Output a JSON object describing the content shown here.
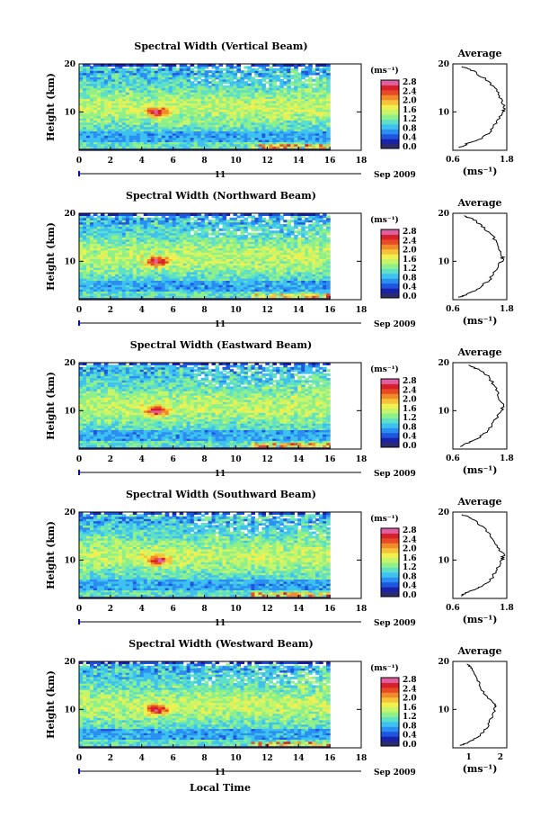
{
  "chart_data": {
    "type": "heatmap",
    "figure_xlabel": "Local Time",
    "date_label": "Sep 2009",
    "day_label": "11",
    "height_ticks": [
      "20",
      "10"
    ],
    "time_ticks": [
      "0",
      "2",
      "4",
      "6",
      "8",
      "10",
      "12",
      "14",
      "16",
      "18"
    ],
    "xlim": [
      0,
      18
    ],
    "ylim": [
      2,
      20
    ],
    "ylabel": "Height (km)",
    "unit_label": "(ms⁻¹)",
    "colorbar": {
      "ticks": [
        "2.8",
        "2.4",
        "2.0",
        "1.6",
        "1.2",
        "0.8",
        "0.4",
        "0.0"
      ],
      "range": [
        0.0,
        3.0
      ],
      "colors": [
        "#2b2b6e",
        "#1a22a8",
        "#1f56e0",
        "#2a8ff0",
        "#3ec1f0",
        "#5ee0c8",
        "#8ff08a",
        "#c6f56a",
        "#f0f050",
        "#f5c23a",
        "#f08a2a",
        "#e84a25",
        "#d6202a",
        "#e05fa0"
      ]
    },
    "panels": [
      {
        "title": "Spectral Width (Vertical Beam)",
        "average": {
          "title": "Average",
          "xlim": [
            0.6,
            1.8
          ],
          "xticks": [
            "0.6",
            "1.8"
          ],
          "xlabel": "(ms⁻¹)",
          "profile": [
            [
              0.75,
              2.5
            ],
            [
              0.95,
              3.5
            ],
            [
              1.25,
              4.5
            ],
            [
              1.45,
              6
            ],
            [
              1.58,
              8
            ],
            [
              1.7,
              10
            ],
            [
              1.75,
              11
            ],
            [
              1.66,
              13
            ],
            [
              1.55,
              15
            ],
            [
              1.3,
              17
            ],
            [
              1.05,
              18.5
            ],
            [
              0.8,
              19.5
            ]
          ]
        }
      },
      {
        "title": "Spectral Width (Northward Beam)",
        "average": {
          "title": "Average",
          "xlim": [
            0.6,
            1.8
          ],
          "xticks": [
            "0.6",
            "1.8"
          ],
          "xlabel": "(ms⁻¹)",
          "profile": [
            [
              0.75,
              2.5
            ],
            [
              1.0,
              3.5
            ],
            [
              1.2,
              4.5
            ],
            [
              1.4,
              6
            ],
            [
              1.55,
              8
            ],
            [
              1.68,
              10
            ],
            [
              1.72,
              11
            ],
            [
              1.6,
              13
            ],
            [
              1.5,
              15
            ],
            [
              1.3,
              17
            ],
            [
              1.1,
              18.5
            ],
            [
              0.85,
              19.5
            ]
          ]
        }
      },
      {
        "title": "Spectral Width (Eastward Beam)",
        "average": {
          "title": "Average",
          "xlim": [
            0.6,
            1.8
          ],
          "xticks": [
            "0.6",
            "1.8"
          ],
          "xlabel": "(ms⁻¹)",
          "profile": [
            [
              0.75,
              2.5
            ],
            [
              1.0,
              3.5
            ],
            [
              1.2,
              4.5
            ],
            [
              1.4,
              6
            ],
            [
              1.55,
              8
            ],
            [
              1.68,
              10
            ],
            [
              1.72,
              11
            ],
            [
              1.62,
              13
            ],
            [
              1.55,
              15
            ],
            [
              1.4,
              17
            ],
            [
              1.2,
              18.5
            ],
            [
              0.95,
              19.5
            ]
          ]
        }
      },
      {
        "title": "Spectral Width (Southward Beam)",
        "average": {
          "title": "Average",
          "xlim": [
            0.6,
            1.8
          ],
          "xticks": [
            "0.6",
            "1.8"
          ],
          "xlabel": "(ms⁻¹)",
          "profile": [
            [
              0.75,
              2.5
            ],
            [
              1.0,
              3.5
            ],
            [
              1.25,
              4.5
            ],
            [
              1.45,
              6
            ],
            [
              1.58,
              8
            ],
            [
              1.7,
              10
            ],
            [
              1.72,
              11
            ],
            [
              1.6,
              13
            ],
            [
              1.45,
              15
            ],
            [
              1.25,
              17
            ],
            [
              1.05,
              18.5
            ],
            [
              0.8,
              19.5
            ]
          ]
        }
      },
      {
        "title": "Spectral Width (Westward Beam)",
        "average": {
          "title": "Average",
          "xlim": [
            0.5,
            2.2
          ],
          "xticks": [
            "1",
            "2"
          ],
          "xlabel": "(ms⁻¹)",
          "profile": [
            [
              0.75,
              2.5
            ],
            [
              1.1,
              3.5
            ],
            [
              1.35,
              4.5
            ],
            [
              1.55,
              6
            ],
            [
              1.7,
              8
            ],
            [
              1.82,
              10
            ],
            [
              1.85,
              11
            ],
            [
              1.5,
              13
            ],
            [
              1.35,
              15
            ],
            [
              1.25,
              17
            ],
            [
              1.1,
              18.5
            ],
            [
              0.95,
              19.5
            ]
          ]
        }
      }
    ]
  }
}
